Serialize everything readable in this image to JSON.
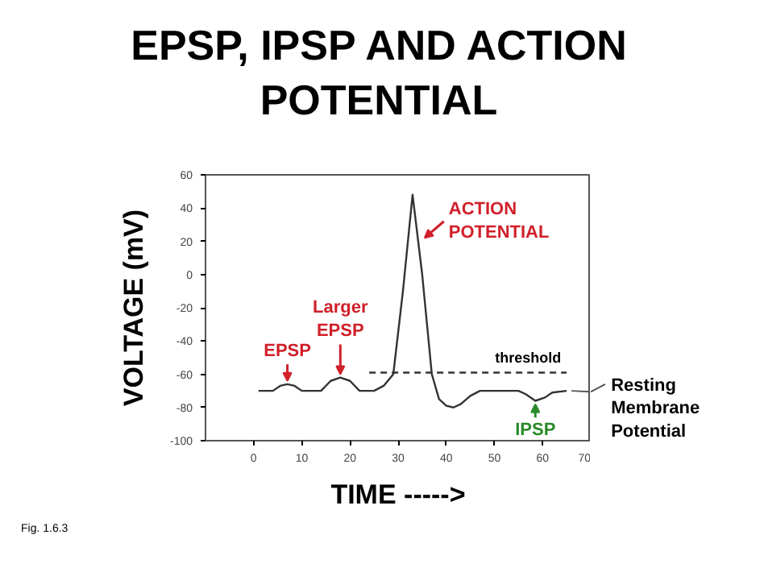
{
  "chart_data": {
    "type": "line",
    "title": "EPSP, IPSP AND ACTION POTENTIAL",
    "xlabel": "TIME ----->",
    "ylabel": "VOLTAGE (mV)",
    "xlim": [
      -10,
      70
    ],
    "ylim": [
      -100,
      60
    ],
    "xticks": [
      0,
      10,
      20,
      30,
      40,
      50,
      60,
      70
    ],
    "yticks": [
      -100,
      -80,
      -60,
      -40,
      -20,
      0,
      20,
      40,
      60
    ],
    "grid": false,
    "marker": "none",
    "series": [
      {
        "color": "#333333",
        "line_style": "solid",
        "x": [
          1,
          4,
          5.5,
          7,
          8.5,
          10,
          14,
          16,
          18,
          20,
          22,
          25,
          27,
          29,
          31,
          33,
          35,
          37,
          38.5,
          40,
          41.5,
          43,
          45,
          47,
          55,
          56.5,
          58.5,
          60.5,
          62,
          65
        ],
        "values": [
          -70,
          -70,
          -67,
          -66,
          -67,
          -70,
          -70,
          -64,
          -62,
          -64,
          -70,
          -70,
          -67,
          -60,
          -10,
          48,
          0,
          -60,
          -75,
          -79,
          -80,
          -78,
          -73,
          -70,
          -70,
          -72,
          -76,
          -74,
          -71,
          -70
        ]
      },
      {
        "color": "#333333",
        "line_style": "dashed",
        "x": [
          24,
          65
        ],
        "values": [
          -59,
          -59
        ]
      }
    ],
    "annotations": [
      {
        "text": "EPSP",
        "x": 7,
        "y": -66
      },
      {
        "text": "Larger EPSP",
        "x": 18,
        "y": -62
      },
      {
        "text": "ACTION POTENTIAL",
        "x": 35.5,
        "y": 22
      },
      {
        "text": "threshold",
        "x": 57,
        "y": -59
      },
      {
        "text": "IPSP",
        "x": 58.5,
        "y": -76
      },
      {
        "text": "Resting Membrane Potential",
        "x": 66,
        "y": -70
      },
      "Fig. 1.6.3"
    ]
  }
}
